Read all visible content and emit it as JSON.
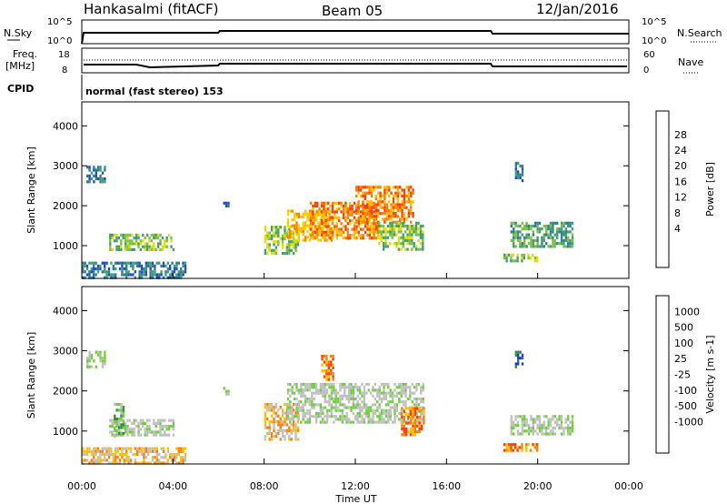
{
  "header": {
    "station": "Hankasalmi (fitACF)",
    "beam": "Beam 05",
    "date": "12/Jan/2016"
  },
  "strips": {
    "sky_label": "N.Sky",
    "search_label": "N.Search",
    "sky_axis": [
      "10^5",
      "10^0"
    ],
    "search_axis": [
      "10^5",
      "10^0"
    ],
    "freq_label": "Freq.",
    "freq_unit": "[MHz]",
    "freq_ticks": [
      "18",
      "8"
    ],
    "nave_label": "Nave",
    "nave_ticks": [
      "60",
      "0"
    ],
    "cpid_label": "CPID",
    "cpid_text": "normal (fast stereo) 153"
  },
  "x_axis": {
    "label": "Time UT",
    "ticks": [
      "00:00",
      "04:00",
      "08:00",
      "12:00",
      "16:00",
      "20:00",
      "00:00"
    ]
  },
  "chart_data": [
    {
      "type": "heatmap",
      "ylabel": "Slant Range [km]",
      "ylim": [
        180,
        4600
      ],
      "yticks": [
        1000,
        2000,
        3000,
        4000
      ],
      "xlim_hours": [
        0,
        24
      ],
      "colorbar": {
        "label": "Power [dB]",
        "ticks": [
          "28",
          "24",
          "20",
          "16",
          "12",
          "8",
          "4"
        ],
        "colors": [
          "#0000ff",
          "#1f4fbf",
          "#2f7f8f",
          "#3f9f6f",
          "#7fbf3f",
          "#dfdf00",
          "#ffbf00",
          "#ff8000",
          "#ff4000",
          "#e00000"
        ]
      },
      "regions": [
        {
          "t": [
            0.2,
            1.0
          ],
          "r": [
            2600,
            3000
          ],
          "level": 2
        },
        {
          "t": [
            1.2,
            4.0
          ],
          "r": [
            900,
            1300
          ],
          "level": 4
        },
        {
          "t": [
            0.0,
            4.5
          ],
          "r": [
            200,
            600
          ],
          "level": 2
        },
        {
          "t": [
            6.2,
            6.4
          ],
          "r": [
            2000,
            2100
          ],
          "level": 2
        },
        {
          "t": [
            8.0,
            9.5
          ],
          "r": [
            800,
            1500
          ],
          "level": 4
        },
        {
          "t": [
            9.0,
            11.0
          ],
          "r": [
            1100,
            1900
          ],
          "level": 6
        },
        {
          "t": [
            10.0,
            13.0
          ],
          "r": [
            1200,
            2100
          ],
          "level": 7
        },
        {
          "t": [
            12.0,
            14.5
          ],
          "r": [
            1600,
            2500
          ],
          "level": 7
        },
        {
          "t": [
            13.0,
            15.0
          ],
          "r": [
            900,
            1600
          ],
          "level": 4
        },
        {
          "t": [
            18.8,
            21.5
          ],
          "r": [
            1000,
            1600
          ],
          "level": 3
        },
        {
          "t": [
            18.5,
            20.0
          ],
          "r": [
            600,
            800
          ],
          "level": 4
        },
        {
          "t": [
            19.0,
            19.3
          ],
          "r": [
            2600,
            3100
          ],
          "level": 2
        }
      ]
    },
    {
      "type": "heatmap",
      "ylabel": "Slant Range [km]",
      "ylim": [
        180,
        4600
      ],
      "yticks": [
        1000,
        2000,
        3000,
        4000
      ],
      "xlim_hours": [
        0,
        24
      ],
      "colorbar": {
        "label": "Velocity [m s-1]",
        "ticks": [
          "1000",
          "500",
          "100",
          "25",
          "-25",
          "-100",
          "-500",
          "-1000"
        ],
        "colors": [
          "#1f3fbf",
          "#2f6f9f",
          "#2f8f3f",
          "#6fcf3f",
          "#c0c0c0",
          "#c0c0c0",
          "#ffbf00",
          "#ff8000",
          "#ff4000",
          "#e00000"
        ]
      },
      "regions": [
        {
          "t": [
            0.2,
            1.0
          ],
          "r": [
            2600,
            3000
          ],
          "level": 4
        },
        {
          "t": [
            1.2,
            4.0
          ],
          "r": [
            900,
            1300
          ],
          "level": 4
        },
        {
          "t": [
            1.4,
            1.8
          ],
          "r": [
            900,
            1700
          ],
          "level": 3
        },
        {
          "t": [
            0.0,
            4.5
          ],
          "r": [
            200,
            600
          ],
          "level": 6
        },
        {
          "t": [
            6.2,
            6.4
          ],
          "r": [
            1900,
            2100
          ],
          "level": 4
        },
        {
          "t": [
            8.0,
            9.5
          ],
          "r": [
            800,
            1700
          ],
          "level": 6
        },
        {
          "t": [
            9.0,
            15.0
          ],
          "r": [
            1200,
            2200
          ],
          "level": 4
        },
        {
          "t": [
            10.5,
            11.0
          ],
          "r": [
            2300,
            2900
          ],
          "level": 7
        },
        {
          "t": [
            14.0,
            15.0
          ],
          "r": [
            900,
            1600
          ],
          "level": 7
        },
        {
          "t": [
            18.8,
            21.5
          ],
          "r": [
            900,
            1400
          ],
          "level": 4
        },
        {
          "t": [
            18.5,
            20.0
          ],
          "r": [
            500,
            700
          ],
          "level": 7
        },
        {
          "t": [
            19.0,
            19.3
          ],
          "r": [
            2600,
            3000
          ],
          "level": 1
        }
      ]
    }
  ]
}
